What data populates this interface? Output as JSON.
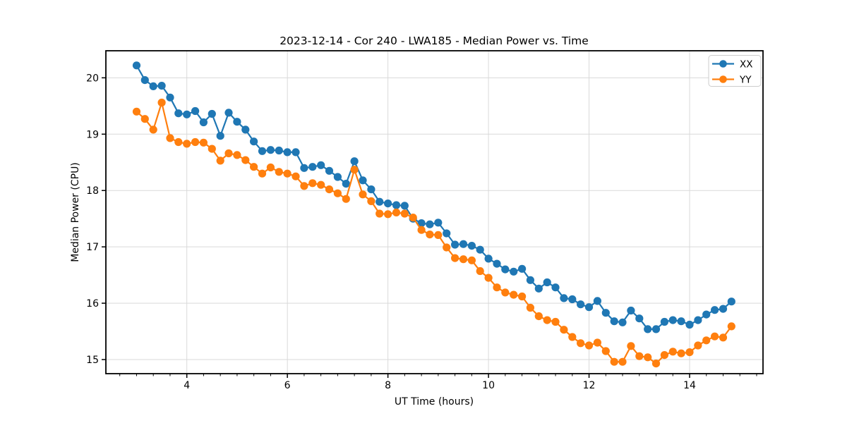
{
  "figure": {
    "title": "2023-12-14 - Cor 240 - LWA185 - Median Power vs. Time",
    "xlabel": "UT Time (hours)",
    "ylabel": "Median Power (CPU)"
  },
  "legend": {
    "items": [
      {
        "label": "XX",
        "color": "#1f77b4"
      },
      {
        "label": "YY",
        "color": "#ff7f0e"
      }
    ]
  },
  "colors": {
    "series_xx": "#1f77b4",
    "series_yy": "#ff7f0e",
    "grid": "#d9d9d9",
    "spine": "#000000",
    "legend_border": "#cccccc",
    "background": "#ffffff"
  },
  "chart_data": {
    "type": "line",
    "title": "2023-12-14 - Cor 240 - LWA185 - Median Power vs. Time",
    "xlabel": "UT Time (hours)",
    "ylabel": "Median Power (CPU)",
    "grid": true,
    "legend_position": "upper right",
    "marker": "circle",
    "xlim": [
      2.39,
      15.46
    ],
    "ylim": [
      14.75,
      20.48
    ],
    "x_ticks": [
      4,
      6,
      8,
      10,
      12,
      14
    ],
    "y_ticks": [
      15,
      16,
      17,
      18,
      19,
      20
    ],
    "x_minor_step": 0.3333,
    "x": [
      3.0,
      3.167,
      3.333,
      3.5,
      3.667,
      3.833,
      4.0,
      4.167,
      4.333,
      4.5,
      4.667,
      4.833,
      5.0,
      5.167,
      5.333,
      5.5,
      5.667,
      5.833,
      6.0,
      6.167,
      6.333,
      6.5,
      6.667,
      6.833,
      7.0,
      7.167,
      7.333,
      7.5,
      7.667,
      7.833,
      8.0,
      8.167,
      8.333,
      8.5,
      8.667,
      8.833,
      9.0,
      9.167,
      9.333,
      9.5,
      9.667,
      9.833,
      10.0,
      10.167,
      10.333,
      10.5,
      10.667,
      10.833,
      11.0,
      11.167,
      11.333,
      11.5,
      11.667,
      11.833,
      12.0,
      12.167,
      12.333,
      12.5,
      12.667,
      12.833,
      13.0,
      13.167,
      13.333,
      13.5,
      13.667,
      13.833,
      14.0,
      14.167,
      14.333,
      14.5,
      14.667,
      14.833
    ],
    "series": [
      {
        "name": "XX",
        "color": "#1f77b4",
        "values": [
          20.22,
          19.96,
          19.85,
          19.86,
          19.65,
          19.37,
          19.35,
          19.41,
          19.21,
          19.36,
          18.97,
          19.38,
          19.22,
          19.08,
          18.87,
          18.7,
          18.72,
          18.71,
          18.68,
          18.68,
          18.4,
          18.42,
          18.45,
          18.35,
          18.24,
          18.12,
          18.52,
          18.18,
          18.02,
          17.8,
          17.77,
          17.74,
          17.73,
          17.5,
          17.42,
          17.4,
          17.43,
          17.24,
          17.04,
          17.05,
          17.02,
          16.95,
          16.79,
          16.7,
          16.6,
          16.56,
          16.61,
          16.41,
          16.26,
          16.37,
          16.28,
          16.09,
          16.07,
          15.98,
          15.93,
          16.04,
          15.83,
          15.68,
          15.66,
          15.87,
          15.73,
          15.54,
          15.54,
          15.67,
          15.7,
          15.68,
          15.62,
          15.7,
          15.8,
          15.88,
          15.9,
          16.03
        ]
      },
      {
        "name": "YY",
        "color": "#ff7f0e",
        "values": [
          19.4,
          19.27,
          19.08,
          19.56,
          18.93,
          18.86,
          18.83,
          18.86,
          18.85,
          18.74,
          18.53,
          18.66,
          18.63,
          18.54,
          18.42,
          18.3,
          18.41,
          18.33,
          18.3,
          18.25,
          18.08,
          18.13,
          18.1,
          18.02,
          17.95,
          17.85,
          18.37,
          17.93,
          17.81,
          17.59,
          17.58,
          17.61,
          17.59,
          17.52,
          17.3,
          17.22,
          17.21,
          16.99,
          16.8,
          16.78,
          16.76,
          16.57,
          16.45,
          16.28,
          16.19,
          16.15,
          16.12,
          15.92,
          15.77,
          15.7,
          15.67,
          15.53,
          15.4,
          15.29,
          15.25,
          15.3,
          15.15,
          14.96,
          14.96,
          15.24,
          15.06,
          15.04,
          14.93,
          15.08,
          15.14,
          15.11,
          15.13,
          15.25,
          15.34,
          15.41,
          15.39,
          15.59
        ]
      }
    ]
  }
}
